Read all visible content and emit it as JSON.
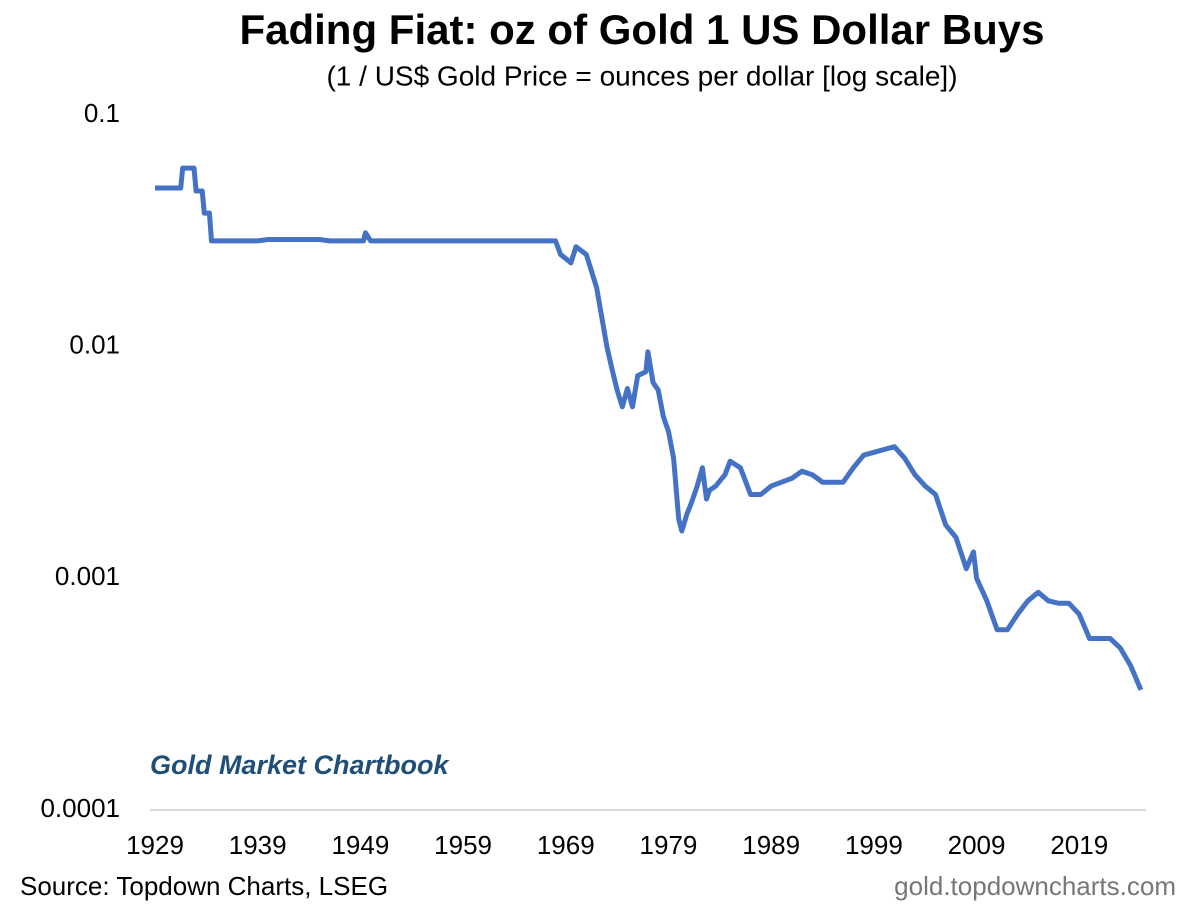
{
  "chart_data": {
    "type": "line",
    "title": "Fading Fiat: oz of Gold 1 US Dollar Buys",
    "subtitle": "(1 / US$ Gold Price = ounces per dollar [log scale])",
    "annotation": "Gold Market Chartbook",
    "source": "Source: Topdown Charts, LSEG",
    "watermark": "gold.topdowncharts.com",
    "log_scale": true,
    "grid": false,
    "xlim": [
      1929,
      2025.5
    ],
    "xticks": [
      1929,
      1939,
      1949,
      1959,
      1969,
      1979,
      1989,
      1999,
      2009,
      2019
    ],
    "ylim": [
      0.0001,
      0.1
    ],
    "yticks": [
      0.1,
      0.01,
      0.001,
      0.0001
    ],
    "x": [
      1929,
      1931.5,
      1931.7,
      1932.8,
      1933,
      1933.6,
      1933.8,
      1934.3,
      1934.5,
      1939,
      1940,
      1945,
      1946,
      1949.3,
      1949.5,
      1950,
      1968,
      1968.5,
      1969,
      1969.5,
      1970,
      1971,
      1972,
      1973,
      1973.5,
      1974,
      1974.5,
      1975,
      1975.5,
      1976,
      1976.8,
      1977,
      1977.5,
      1978,
      1978.5,
      1979,
      1979.5,
      1980,
      1980.3,
      1980.8,
      1981.2,
      1981.8,
      1982.3,
      1982.7,
      1983,
      1983.6,
      1984.5,
      1985,
      1986,
      1987,
      1988,
      1989,
      1990,
      1991,
      1992,
      1993,
      1994,
      1995,
      1996,
      1997,
      1998,
      1999,
      2000,
      2001,
      2002,
      2003,
      2004,
      2005,
      2006,
      2007,
      2008,
      2008.7,
      2009,
      2010,
      2011,
      2012,
      2013,
      2014,
      2015,
      2016,
      2017,
      2018,
      2019,
      2020,
      2021,
      2022,
      2023,
      2024,
      2025
    ],
    "series": [
      {
        "name": "oz per dollar",
        "color": "#4472c4",
        "values": [
          0.0484,
          0.0484,
          0.059,
          0.059,
          0.047,
          0.047,
          0.0377,
          0.0377,
          0.0286,
          0.0286,
          0.029,
          0.029,
          0.0286,
          0.0286,
          0.031,
          0.0286,
          0.0286,
          0.025,
          0.024,
          0.023,
          0.027,
          0.025,
          0.018,
          0.01,
          0.008,
          0.0065,
          0.0055,
          0.0066,
          0.0055,
          0.0075,
          0.0078,
          0.0095,
          0.007,
          0.0065,
          0.005,
          0.0043,
          0.0033,
          0.0018,
          0.0016,
          0.0019,
          0.0021,
          0.0025,
          0.003,
          0.0022,
          0.0024,
          0.0025,
          0.0028,
          0.0032,
          0.003,
          0.0023,
          0.0023,
          0.0025,
          0.0026,
          0.0027,
          0.0029,
          0.0028,
          0.0026,
          0.0026,
          0.0026,
          0.003,
          0.0034,
          0.0035,
          0.0036,
          0.0037,
          0.0033,
          0.0028,
          0.0025,
          0.0023,
          0.0017,
          0.0015,
          0.0011,
          0.0013,
          0.001,
          0.0008,
          0.0006,
          0.0006,
          0.0007,
          0.0008,
          0.00087,
          0.0008,
          0.00078,
          0.00078,
          0.0007,
          0.00055,
          0.00055,
          0.00055,
          0.0005,
          0.00042,
          0.00033
        ]
      }
    ]
  }
}
